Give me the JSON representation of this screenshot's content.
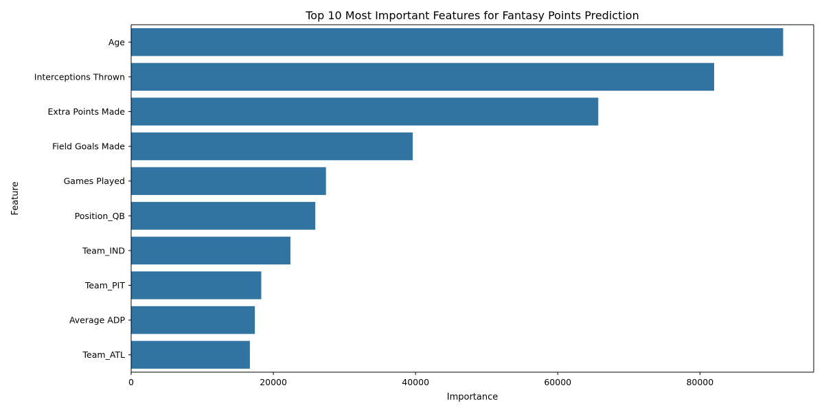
{
  "chart_data": {
    "type": "bar",
    "orientation": "horizontal",
    "title": "Top 10 Most Important Features for Fantasy Points Prediction",
    "xlabel": "Importance",
    "ylabel": "Feature",
    "categories": [
      "Age",
      "Interceptions Thrown",
      "Extra Points Made",
      "Field Goals Made",
      "Games Played",
      "Position_QB",
      "Team_IND",
      "Team_PIT",
      "Average ADP",
      "Team_ATL"
    ],
    "values": [
      91700,
      82000,
      65700,
      39600,
      27400,
      25900,
      22400,
      18300,
      17400,
      16700
    ],
    "xlim": [
      0,
      96000
    ],
    "xticks": [
      0,
      20000,
      40000,
      60000,
      80000
    ],
    "grid": false,
    "bar_color": "#3274a1"
  }
}
